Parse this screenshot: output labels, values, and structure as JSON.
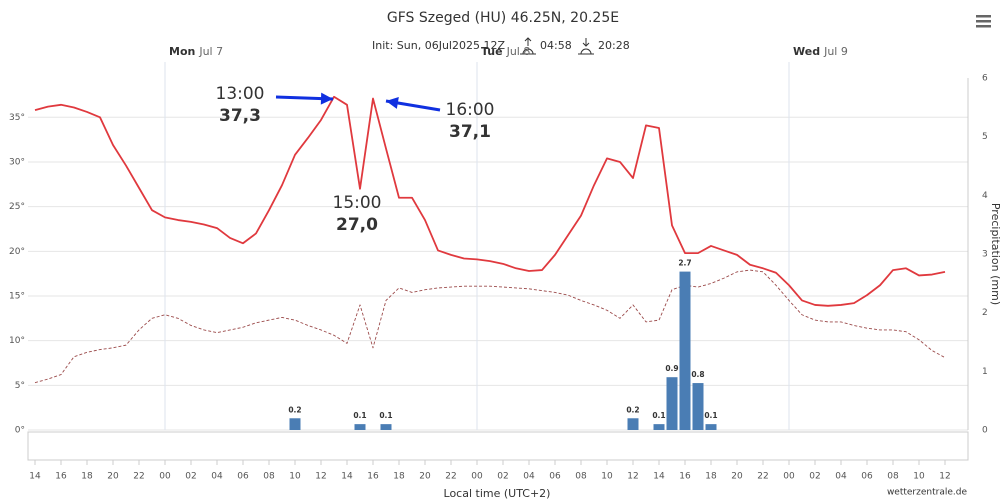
{
  "chart_data": {
    "type": "line",
    "title": "GFS Szeged (HU) 46.25N, 20.25E",
    "subtitle": {
      "init": "Init: Sun, 06Jul2025 12Z",
      "sunrise": "04:58",
      "sunset": "20:28"
    },
    "x_label": "Local time (UTC+2)",
    "y2_label": "Precipitation (mm)",
    "credits": "wetterzentrale.de",
    "day_labels": [
      {
        "weekday": "Mon",
        "date": "Jul 7"
      },
      {
        "weekday": "Tue",
        "date": "Jul 8"
      },
      {
        "weekday": "Wed",
        "date": "Jul 9"
      }
    ],
    "categories": [
      "14",
      null,
      "16",
      null,
      "18",
      null,
      "20",
      null,
      "22",
      null,
      "00",
      null,
      "02",
      null,
      "04",
      null,
      "06",
      null,
      "08",
      null,
      "10",
      null,
      "12",
      null,
      "14",
      null,
      "16",
      null,
      "18",
      null,
      "20",
      null,
      "22",
      null,
      "00",
      null,
      "02",
      null,
      "04",
      null,
      "06",
      null,
      "08",
      null,
      "10",
      null,
      "12",
      null,
      "14",
      null,
      "16",
      null,
      "18",
      null,
      "20",
      null,
      "22",
      null,
      "00",
      null,
      "02",
      null,
      "04",
      null,
      "06",
      null,
      "08",
      null,
      "10",
      null,
      "12"
    ],
    "series": [
      {
        "type": "line",
        "color": "#e0393e",
        "dash": false,
        "values": [
          35.8,
          36.2,
          36.4,
          36.1,
          35.6,
          35.0,
          31.9,
          29.6,
          27.1,
          24.6,
          23.8,
          23.5,
          23.3,
          23.0,
          22.6,
          21.5,
          20.9,
          22.0,
          24.6,
          27.4,
          30.8,
          32.7,
          34.7,
          37.3,
          36.4,
          27.0,
          37.1,
          31.5,
          26.0,
          26.0,
          23.5,
          20.1,
          19.6,
          19.2,
          19.1,
          18.9,
          18.6,
          18.1,
          17.8,
          17.9,
          19.6,
          21.8,
          24.0,
          27.4,
          30.4,
          30.0,
          28.2,
          34.1,
          33.8,
          22.9,
          19.8,
          19.8,
          20.6,
          20.1,
          19.6,
          18.5,
          18.1,
          17.6,
          16.2,
          14.5,
          14.0,
          13.9,
          14.0,
          14.2,
          15.1,
          16.2,
          17.9,
          18.1,
          17.3,
          17.4,
          17.7
        ]
      },
      {
        "type": "line",
        "color": "#9b4a4a",
        "dash": true,
        "values": [
          5.3,
          5.7,
          6.2,
          8.2,
          8.7,
          9.0,
          9.2,
          9.5,
          11.2,
          12.5,
          12.9,
          12.5,
          11.7,
          11.2,
          10.9,
          11.2,
          11.5,
          12.0,
          12.3,
          12.6,
          12.3,
          11.7,
          11.2,
          10.6,
          9.7,
          14.0,
          9.2,
          14.5,
          15.9,
          15.4,
          15.7,
          15.9,
          16.0,
          16.1,
          16.1,
          16.1,
          16.0,
          15.9,
          15.8,
          15.6,
          15.4,
          15.1,
          14.5,
          14.0,
          13.4,
          12.5,
          14.0,
          12.1,
          12.3,
          15.7,
          16.2,
          16.0,
          16.4,
          17.0,
          17.7,
          17.9,
          17.7,
          16.2,
          14.5,
          12.9,
          12.3,
          12.1,
          12.1,
          11.7,
          11.4,
          11.2,
          11.2,
          11.0,
          10.1,
          8.9,
          8.1
        ]
      },
      {
        "type": "bar",
        "axis": "y2",
        "color": "#4a7db4",
        "values": [
          0,
          0,
          0,
          0,
          0,
          0,
          0,
          0,
          0,
          0,
          0,
          0,
          0,
          0,
          0,
          0,
          0,
          0,
          0,
          0,
          0.2,
          0,
          0,
          0,
          0,
          0.1,
          0,
          0.1,
          0,
          0,
          0,
          0,
          0,
          0,
          0,
          0,
          0,
          0,
          0,
          0,
          0,
          0,
          0,
          0,
          0,
          0,
          0.2,
          0,
          0.1,
          0.9,
          2.7,
          0.8,
          0.1,
          0,
          0,
          0,
          0,
          0,
          0,
          0,
          0,
          0,
          0,
          0,
          0,
          0,
          0,
          0,
          0,
          0,
          0
        ]
      }
    ],
    "annotations": [
      {
        "time": "13:00",
        "value": "37,3"
      },
      {
        "time": "15:00",
        "value": "27,0"
      },
      {
        "time": "16:00",
        "value": "37,1"
      }
    ],
    "annotation_color": "#0a1aa8",
    "ylim": [
      0,
      39.4
    ],
    "yticks": [
      {
        "value": 0,
        "label": "0°"
      },
      {
        "value": 5,
        "label": "5°"
      },
      {
        "value": 10,
        "label": "10°"
      },
      {
        "value": 15,
        "label": "15°"
      },
      {
        "value": 20,
        "label": "20°"
      },
      {
        "value": 25,
        "label": "25°"
      },
      {
        "value": 30,
        "label": "30°"
      },
      {
        "value": 35,
        "label": "35°"
      }
    ],
    "y2lim": [
      0,
      6
    ],
    "y2ticks": [
      0,
      1,
      2,
      3,
      4,
      5,
      6
    ],
    "grid": true
  }
}
